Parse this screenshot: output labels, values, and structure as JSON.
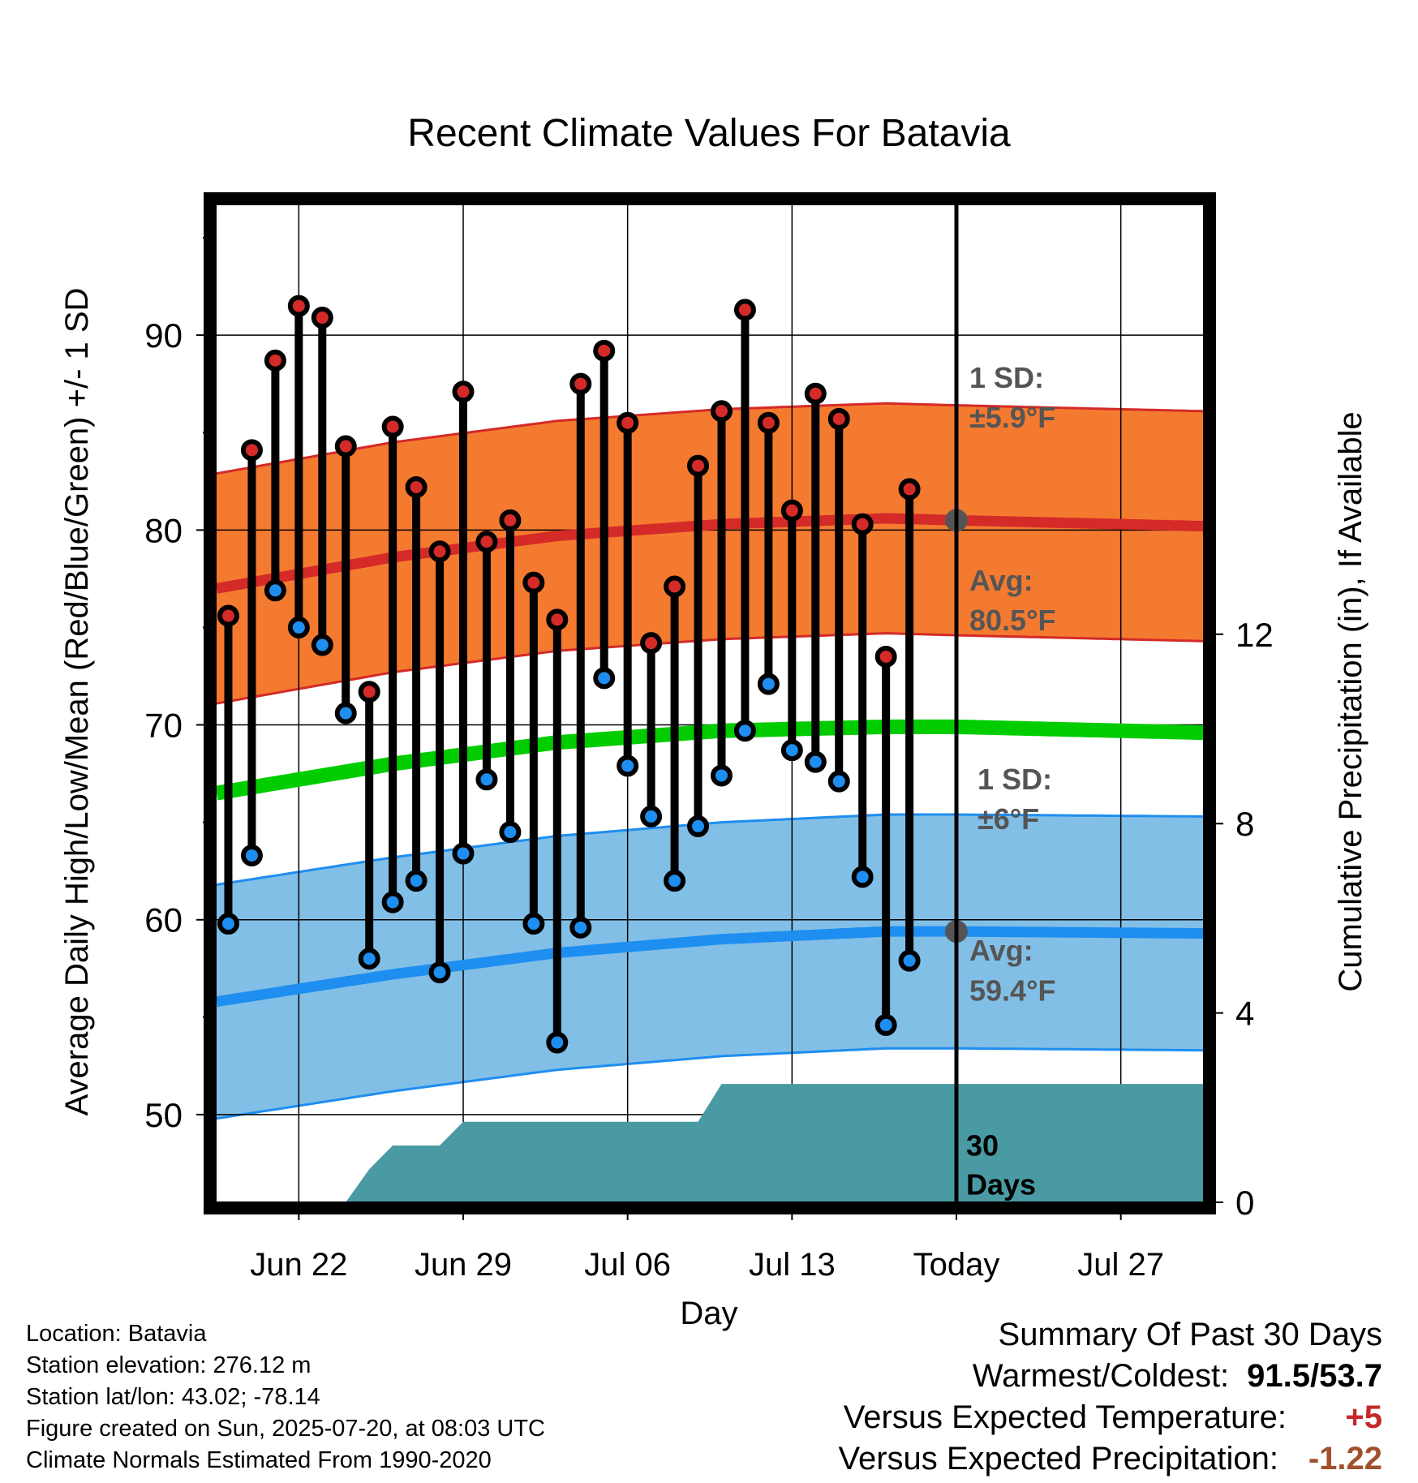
{
  "chart_data": {
    "type": "line",
    "title": "Recent Climate Values For Batavia",
    "xlabel": "Day",
    "ylabel": "Average Daily High/Low/Mean (Red/Blue/Green) +/- 1 SD",
    "y2label": "Cumulative Precipitation (in), If Available",
    "ylim": [
      45.5,
      97
    ],
    "y2lim": [
      0,
      21.2
    ],
    "x_range_days": [
      -31.5,
      10.5
    ],
    "x_ticks": [
      {
        "day": -28,
        "label": "Jun 22"
      },
      {
        "day": -21,
        "label": "Jun 29"
      },
      {
        "day": -14,
        "label": "Jul 06"
      },
      {
        "day": -7,
        "label": "Jul 13"
      },
      {
        "day": 0,
        "label": "Today"
      },
      {
        "day": 7,
        "label": "Jul 27"
      }
    ],
    "y_ticks": [
      50,
      60,
      70,
      80,
      90
    ],
    "y2_ticks": [
      0,
      4,
      8,
      12
    ],
    "grid": true,
    "today_line_day": 0,
    "daily": [
      {
        "day": -31,
        "high": 75.6,
        "low": 59.8
      },
      {
        "day": -30,
        "high": 84.1,
        "low": 63.3
      },
      {
        "day": -29,
        "high": 88.7,
        "low": 76.9
      },
      {
        "day": -28,
        "high": 91.5,
        "low": 75.0
      },
      {
        "day": -27,
        "high": 90.9,
        "low": 74.1
      },
      {
        "day": -26,
        "high": 84.3,
        "low": 70.6
      },
      {
        "day": -25,
        "high": 71.7,
        "low": 58.0
      },
      {
        "day": -24,
        "high": 85.3,
        "low": 60.9
      },
      {
        "day": -23,
        "high": 82.2,
        "low": 62.0
      },
      {
        "day": -22,
        "high": 78.9,
        "low": 57.3
      },
      {
        "day": -21,
        "high": 87.1,
        "low": 63.4
      },
      {
        "day": -20,
        "high": 79.4,
        "low": 67.2
      },
      {
        "day": -19,
        "high": 80.5,
        "low": 64.5
      },
      {
        "day": -18,
        "high": 77.3,
        "low": 59.8
      },
      {
        "day": -17,
        "high": 75.4,
        "low": 53.7
      },
      {
        "day": -16,
        "high": 87.5,
        "low": 59.6
      },
      {
        "day": -15,
        "high": 89.2,
        "low": 72.4
      },
      {
        "day": -14,
        "high": 85.5,
        "low": 67.9
      },
      {
        "day": -13,
        "high": 74.2,
        "low": 65.3
      },
      {
        "day": -12,
        "high": 77.1,
        "low": 62.0
      },
      {
        "day": -11,
        "high": 83.3,
        "low": 64.8
      },
      {
        "day": -10,
        "high": 86.1,
        "low": 67.4
      },
      {
        "day": -9,
        "high": 91.3,
        "low": 69.7
      },
      {
        "day": -8,
        "high": 85.5,
        "low": 72.1
      },
      {
        "day": -7,
        "high": 81.0,
        "low": 68.7
      },
      {
        "day": -6,
        "high": 87.0,
        "low": 68.1
      },
      {
        "day": -5,
        "high": 85.7,
        "low": 67.1
      },
      {
        "day": -4,
        "high": 80.3,
        "low": 62.2
      },
      {
        "day": -3,
        "high": 73.5,
        "low": 54.6
      },
      {
        "day": -2,
        "high": 82.1,
        "low": 57.9
      }
    ],
    "normals": {
      "high_mean": [
        {
          "day": -31.5,
          "value": 77.0
        },
        {
          "day": -24,
          "value": 78.6
        },
        {
          "day": -17,
          "value": 79.7
        },
        {
          "day": -10,
          "value": 80.3
        },
        {
          "day": -3,
          "value": 80.6
        },
        {
          "day": 0,
          "value": 80.5
        },
        {
          "day": 10.5,
          "value": 80.2
        }
      ],
      "high_sd": 5.9,
      "low_mean": [
        {
          "day": -31.5,
          "value": 55.8
        },
        {
          "day": -24,
          "value": 57.2
        },
        {
          "day": -17,
          "value": 58.3
        },
        {
          "day": -10,
          "value": 59.0
        },
        {
          "day": -3,
          "value": 59.4
        },
        {
          "day": 0,
          "value": 59.4
        },
        {
          "day": 10.5,
          "value": 59.3
        }
      ],
      "low_sd": 6,
      "mean": [
        {
          "day": -31.5,
          "value": 66.5
        },
        {
          "day": -24,
          "value": 68.0
        },
        {
          "day": -17,
          "value": 69.1
        },
        {
          "day": -10,
          "value": 69.7
        },
        {
          "day": -3,
          "value": 69.9
        },
        {
          "day": 0,
          "value": 69.9
        },
        {
          "day": 10.5,
          "value": 69.6
        }
      ]
    },
    "precip_cumulative": [
      {
        "day": -26,
        "value": 0.0
      },
      {
        "day": -25,
        "value": 0.7
      },
      {
        "day": -24,
        "value": 1.2
      },
      {
        "day": -22,
        "value": 1.2
      },
      {
        "day": -21,
        "value": 1.7
      },
      {
        "day": -11,
        "value": 1.7
      },
      {
        "day": -10,
        "value": 2.5
      },
      {
        "day": 10.5,
        "value": 2.5
      }
    ],
    "annotations": {
      "high_sd_label_line1": "1 SD:",
      "high_sd_label_line2": "±5.9°F",
      "high_avg_label_line1": "Avg:",
      "high_avg_label_line2": "80.5°F",
      "low_sd_label_line1": "1 SD:",
      "low_sd_label_line2": "±6°F",
      "low_avg_label_line1": "Avg:",
      "low_avg_label_line2": "59.4°F",
      "precip_label_line1": "30",
      "precip_label_line2": "Days"
    },
    "colors": {
      "high_band": "#f47a30",
      "high_band_edge": "#d42a28",
      "high_mean_line": "#d42a28",
      "low_band": "#82bfe6",
      "low_band_edge": "#1e8ef0",
      "low_mean_line": "#1e8ef0",
      "mean_line": "#00cc00",
      "precip_fill": "#4a9aa3",
      "high_dot": "#d42a28",
      "low_dot": "#1e8ef0",
      "annotation_text": "#555555",
      "today_marker": "#555555"
    }
  },
  "footer": {
    "location": "Location: Batavia",
    "elevation": "Station elevation: 276.12 m",
    "latlon": "Station lat/lon: 43.02; -78.14",
    "created": "Figure created on Sun, 2025-07-20, at 08:03 UTC",
    "normals": "Climate Normals Estimated From 1990-2020"
  },
  "summary": {
    "title": "Summary Of Past 30 Days",
    "warm_cold_label": "Warmest/Coldest:",
    "warm_cold_value": "91.5/53.7",
    "temp_label": "Versus Expected Temperature:",
    "temp_value": "+5",
    "precip_label": "Versus Expected Precipitation:",
    "precip_value": "-1.22"
  }
}
